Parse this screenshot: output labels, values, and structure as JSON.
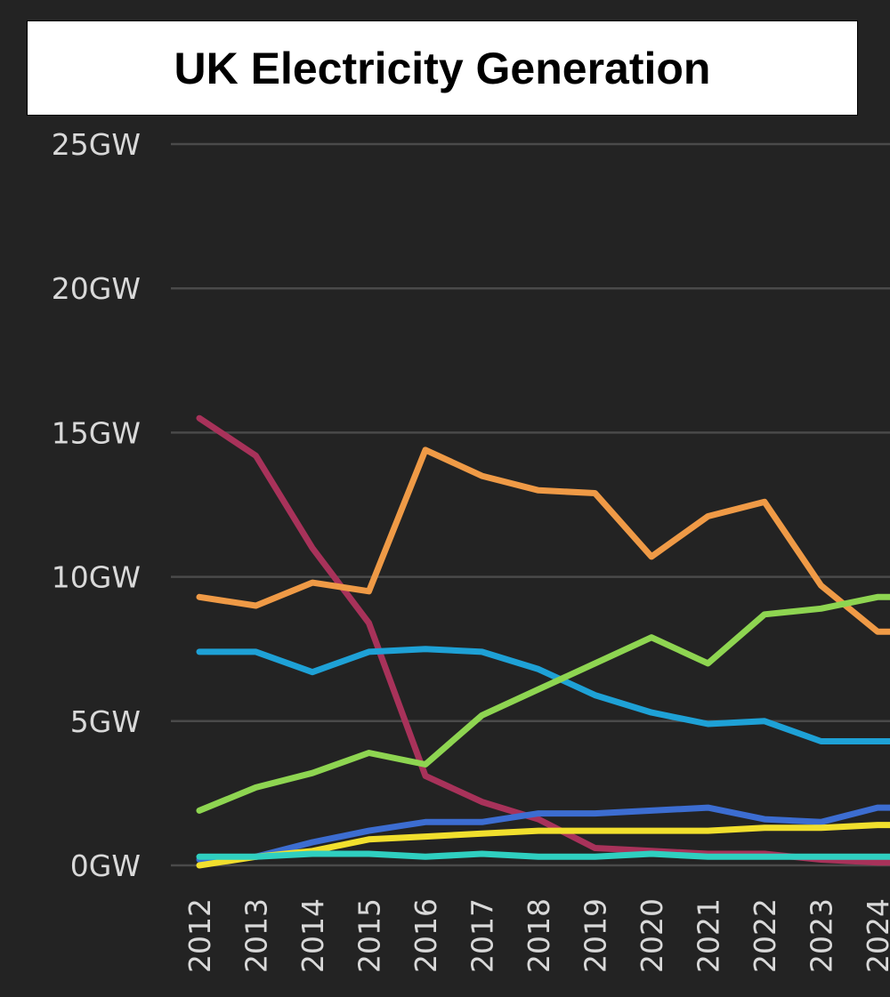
{
  "title": "UK Electricity Generation",
  "chart_data": {
    "type": "line",
    "title": "UK Electricity Generation",
    "xlabel": "",
    "ylabel": "",
    "x": [
      "2012",
      "2013",
      "2014",
      "2015",
      "2016",
      "2017",
      "2018",
      "2019",
      "2020",
      "2021",
      "2022",
      "2023",
      "2024"
    ],
    "y_ticks": [
      "0GW",
      "5GW",
      "10GW",
      "15GW",
      "20GW",
      "25GW"
    ],
    "ylim": [
      0,
      25
    ],
    "grid": true,
    "series": [
      {
        "color": "#a8325a",
        "values": [
          15.5,
          14.2,
          11.0,
          8.4,
          3.1,
          2.2,
          1.6,
          0.6,
          0.5,
          0.4,
          0.4,
          0.2,
          0.1
        ]
      },
      {
        "color": "#ef9a46",
        "values": [
          9.3,
          9.0,
          9.8,
          9.5,
          14.4,
          13.5,
          13.0,
          12.9,
          10.7,
          12.1,
          12.6,
          9.7,
          8.1
        ]
      },
      {
        "color": "#1ea1d6",
        "values": [
          7.4,
          7.4,
          6.7,
          7.4,
          7.5,
          7.4,
          6.8,
          5.9,
          5.3,
          4.9,
          5.0,
          4.3,
          4.3
        ]
      },
      {
        "color": "#8ed551",
        "values": [
          1.9,
          2.7,
          3.2,
          3.9,
          3.5,
          5.2,
          6.1,
          7.0,
          7.9,
          7.0,
          8.7,
          8.9,
          9.3
        ]
      },
      {
        "color": "#3c6dd1",
        "values": [
          0.2,
          0.3,
          0.8,
          1.2,
          1.5,
          1.5,
          1.8,
          1.8,
          1.9,
          2.0,
          1.6,
          1.5,
          2.0
        ]
      },
      {
        "color": "#f1df2d",
        "values": [
          0.0,
          0.3,
          0.5,
          0.9,
          1.0,
          1.1,
          1.2,
          1.2,
          1.2,
          1.2,
          1.3,
          1.3,
          1.4
        ]
      },
      {
        "color": "#2fcfc0",
        "values": [
          0.3,
          0.3,
          0.4,
          0.4,
          0.3,
          0.4,
          0.3,
          0.3,
          0.4,
          0.3,
          0.3,
          0.3,
          0.3
        ]
      }
    ]
  }
}
